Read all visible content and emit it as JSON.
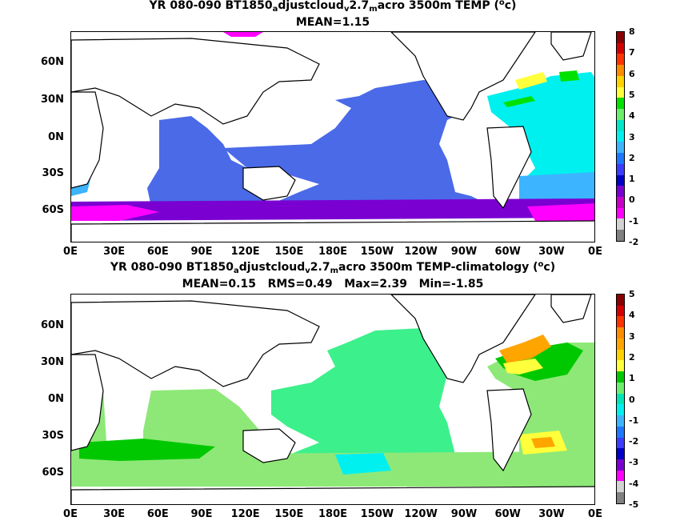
{
  "panels": [
    {
      "title_parts": {
        "a": "YR 080-090 BT1850",
        "sub1": "a",
        "b": "djustcloud",
        "sub2": "v",
        "c": "2.7",
        "sub3": "m",
        "d": "acro 3500m TEMP (",
        "sup": "o",
        "e": "c)"
      },
      "stats": "MEAN=1.15",
      "colorbar": {
        "labels": [
          "8",
          "7",
          "6",
          "5",
          "4",
          "3",
          "2",
          "1",
          "0",
          "-1",
          "-2"
        ],
        "colors": [
          "#8b0000",
          "#d40000",
          "#ff3300",
          "#ff8c00",
          "#ffd200",
          "#ffff3c",
          "#00e100",
          "#6cf06c",
          "#00e6c8",
          "#00f0f0",
          "#3cb4ff",
          "#1e78ff",
          "#3c3cff",
          "#0000c8",
          "#7a00d2",
          "#c800c8",
          "#ff00ff",
          "#d2d2d2",
          "#808080"
        ]
      }
    },
    {
      "title_parts": {
        "a": "YR 080-090 BT1850",
        "sub1": "a",
        "b": "djustcloud",
        "sub2": "v",
        "c": "2.7",
        "sub3": "m",
        "d": "acro 3500m TEMP-climatology (",
        "sup": "o",
        "e": "c)"
      },
      "stats": "MEAN=0.15   RMS=0.49   Max=2.39   Min=-1.85",
      "colorbar": {
        "labels": [
          "5",
          "4",
          "3",
          "2",
          "1",
          "0",
          "-1",
          "-2",
          "-3",
          "-4",
          "-5"
        ],
        "colors": [
          "#8b0000",
          "#d40000",
          "#ff3300",
          "#ff8c00",
          "#ffa500",
          "#ffd200",
          "#ffff3c",
          "#00c800",
          "#6cf06c",
          "#00e6b4",
          "#00f0f0",
          "#3cb4ff",
          "#1e78ff",
          "#3c3cff",
          "#0000c8",
          "#7a00d2",
          "#ff00ff",
          "#d2d2d2",
          "#808080"
        ]
      }
    }
  ],
  "axes": {
    "lat_labels": [
      "60N",
      "30N",
      "0N",
      "30S",
      "60S"
    ],
    "lon_labels": [
      "0E",
      "30E",
      "60E",
      "90E",
      "120E",
      "150E",
      "180E",
      "150W",
      "120W",
      "90W",
      "60W",
      "30W",
      "0E"
    ]
  },
  "colors": {
    "top_main": "#4a6ae8",
    "top_cyan": "#00f0f0",
    "top_lightblue": "#3cb4ff",
    "top_purple": "#7a00d2",
    "top_magenta": "#ff00ff",
    "top_yellow": "#ffff3c",
    "top_green": "#00e100",
    "bot_main": "#3cf08c",
    "bot_light": "#8ee878",
    "bot_green": "#00c800",
    "bot_yellow": "#ffff3c",
    "bot_orange": "#ffa500",
    "bot_cyan": "#00f0f0"
  }
}
